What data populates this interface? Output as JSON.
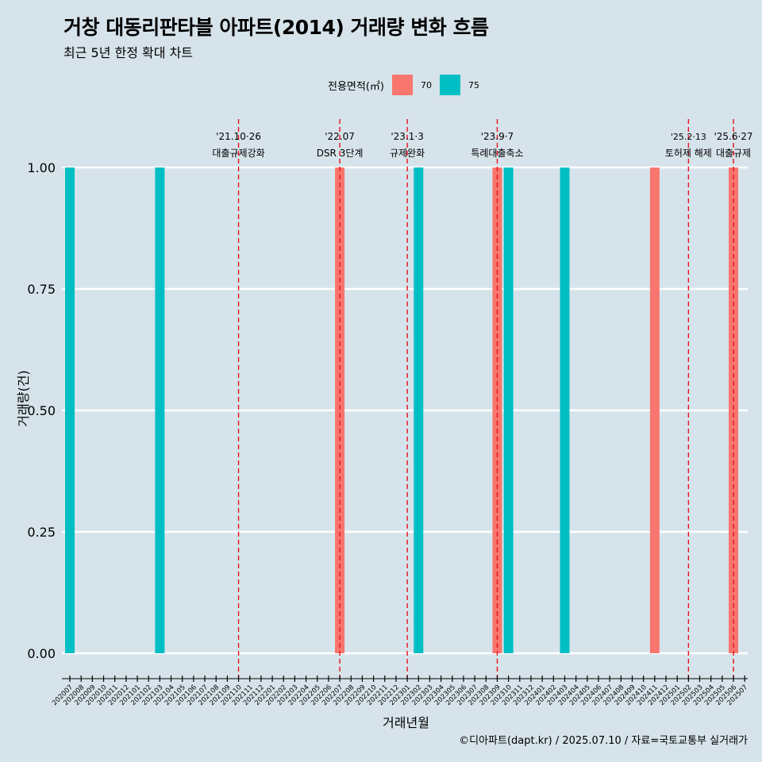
{
  "header": {
    "title": "거창 대동리판타블 아파트(2014) 거래량 변화 흐름",
    "subtitle": "최근 5년 한정 확대 차트"
  },
  "legend": {
    "title": "전용면적(㎡)",
    "items": [
      {
        "label": "70",
        "color": "#f8766d"
      },
      {
        "label": "75",
        "color": "#00bfc4"
      }
    ]
  },
  "caption": "©디아파트(dapt.kr) / 2025.07.10 / 자료=국토교통부 실거래가",
  "chart_data": {
    "type": "bar",
    "xlabel": "거래년월",
    "ylabel": "거래량(건)",
    "ylim": [
      0,
      1
    ],
    "y_ticks": [
      "0.00",
      "0.25",
      "0.50",
      "0.75",
      "1.00"
    ],
    "grid": "horizontal",
    "legend_position": "top",
    "categories": [
      "202007",
      "202008",
      "202009",
      "202010",
      "202011",
      "202012",
      "202101",
      "202102",
      "202103",
      "202104",
      "202105",
      "202106",
      "202107",
      "202108",
      "202109",
      "202110",
      "202111",
      "202112",
      "202201",
      "202202",
      "202203",
      "202204",
      "202205",
      "202206",
      "202207",
      "202208",
      "202209",
      "202210",
      "202211",
      "202212",
      "202301",
      "202302",
      "202303",
      "202304",
      "202305",
      "202306",
      "202307",
      "202308",
      "202309",
      "202310",
      "202311",
      "202312",
      "202401",
      "202402",
      "202403",
      "202404",
      "202405",
      "202406",
      "202407",
      "202408",
      "202409",
      "202410",
      "202411",
      "202412",
      "202501",
      "202502",
      "202503",
      "202504",
      "202505",
      "202506",
      "202507"
    ],
    "series": [
      {
        "name": "70",
        "color": "#f8766d",
        "points": [
          {
            "x": "202207",
            "y": 1
          },
          {
            "x": "202309",
            "y": 1
          },
          {
            "x": "202411",
            "y": 1
          },
          {
            "x": "202506",
            "y": 1
          }
        ]
      },
      {
        "name": "75",
        "color": "#00bfc4",
        "points": [
          {
            "x": "202007",
            "y": 1
          },
          {
            "x": "202103",
            "y": 1
          },
          {
            "x": "202302",
            "y": 1
          },
          {
            "x": "202310",
            "y": 1
          },
          {
            "x": "202403",
            "y": 1
          }
        ]
      }
    ],
    "annotations": [
      {
        "x": "202110",
        "date": "'21.10·26",
        "text": "대출규제강화"
      },
      {
        "x": "202207",
        "date": "'22.07",
        "text": "DSR 3단계"
      },
      {
        "x": "202301",
        "date": "'23.1·3",
        "text": "규제완화"
      },
      {
        "x": "202309",
        "date": "'23.9·7",
        "text": "특례대출축소"
      },
      {
        "x": "202502",
        "date": "'25.2·13",
        "text": "토허제 해제"
      },
      {
        "x": "202506",
        "date": "'25.6·27",
        "text": "대출규제"
      }
    ]
  }
}
